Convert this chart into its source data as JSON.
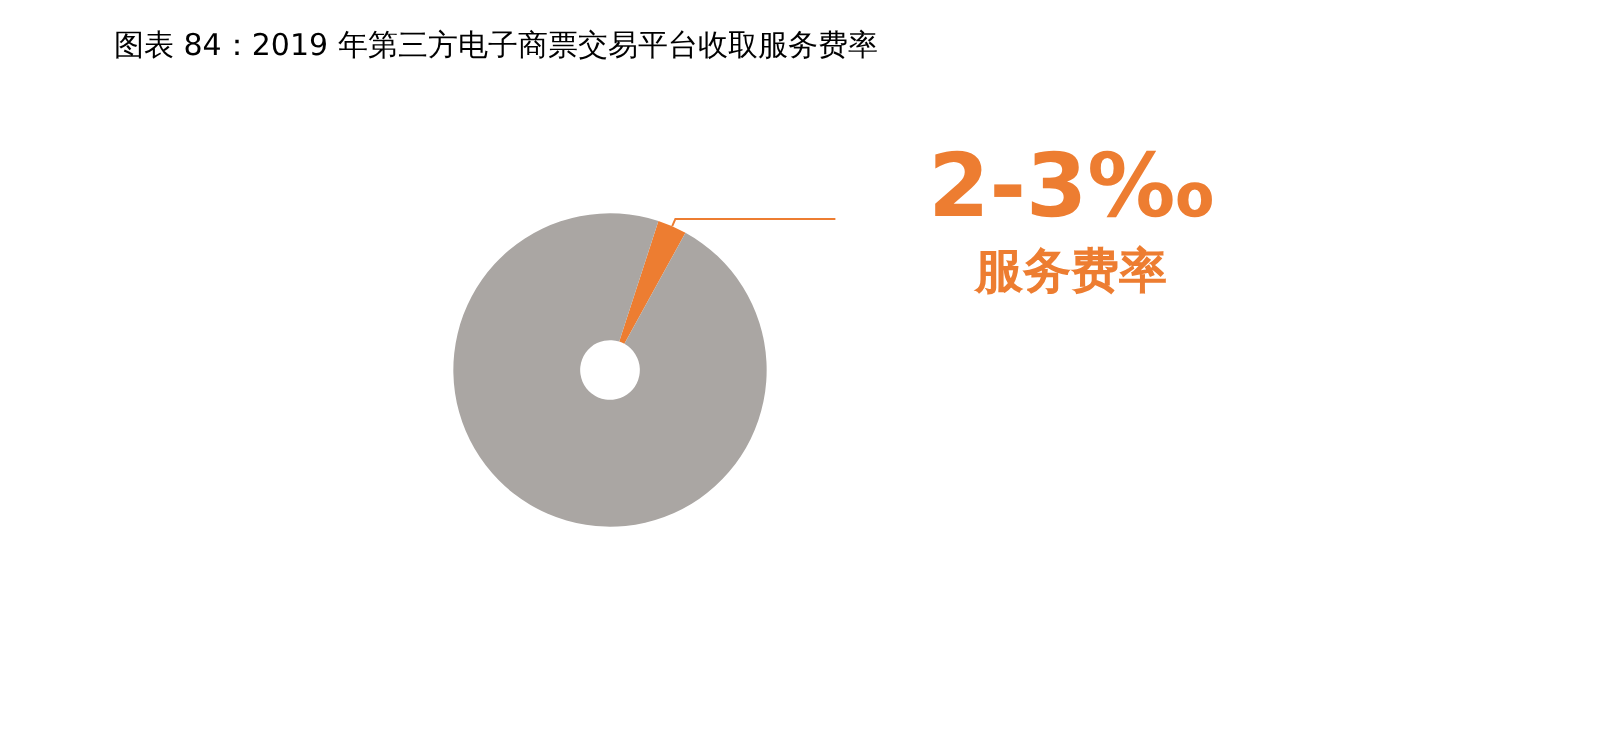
{
  "chart_data": {
    "type": "donut",
    "title": "图表 84：2019 年第三方电子商票交易平台收取服务费率",
    "categories": [
      "服务费率",
      null
    ],
    "values": [
      3,
      97
    ],
    "colors": [
      "#ed7d31",
      "#aaa6a3"
    ],
    "value_labels": [
      "2-3‰",
      null
    ]
  }
}
